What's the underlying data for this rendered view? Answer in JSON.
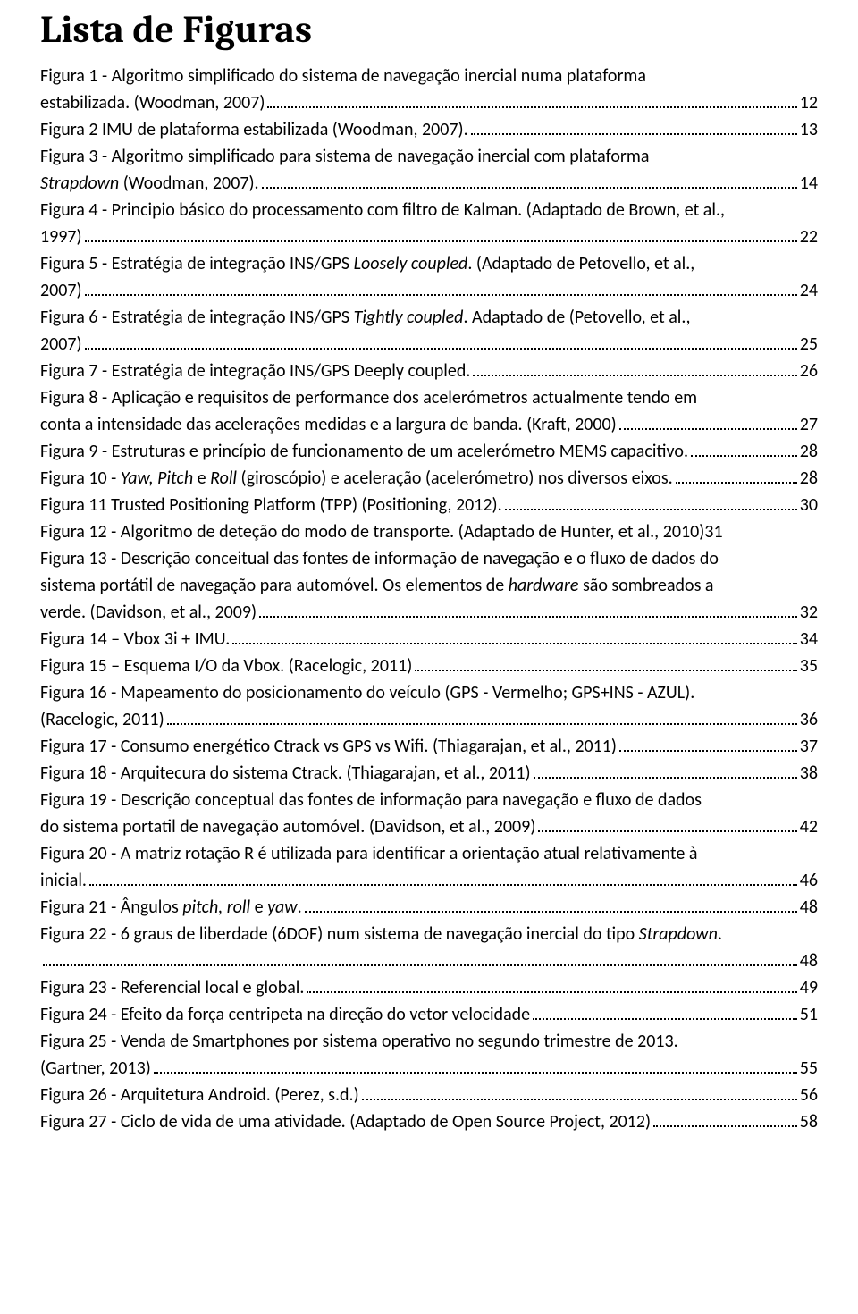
{
  "title": "Lista de Figuras",
  "entries": [
    {
      "pre": "Figura 1 - Algoritmo simplificado do sistema de navegação inercial numa plataforma",
      "last": "estabilizada. (Woodman, 2007)",
      "page": "12"
    },
    {
      "last": "Figura 2 IMU de plataforma estabilizada (Woodman, 2007).",
      "page": "13"
    },
    {
      "pre": "Figura 3 - Algoritmo simplificado para sistema de navegação inercial com plataforma",
      "last_parts": [
        {
          "t": "Strapdown",
          "i": true
        },
        {
          "t": " (Woodman, 2007)."
        }
      ],
      "page": "14"
    },
    {
      "pre": "Figura 4 - Principio básico do processamento com filtro de Kalman. (Adaptado de Brown, et al.,",
      "last": "1997)",
      "page": "22"
    },
    {
      "pre_parts": [
        {
          "t": "Figura 5 - Estratégia de integração INS/GPS "
        },
        {
          "t": "Loosely coupled",
          "i": true
        },
        {
          "t": ". (Adaptado de Petovello, et al.,"
        }
      ],
      "last": "2007)",
      "page": "24"
    },
    {
      "pre_parts": [
        {
          "t": "Figura 6 - Estratégia de integração INS/GPS "
        },
        {
          "t": "Tightly coupled",
          "i": true
        },
        {
          "t": ". Adaptado de (Petovello, et al.,"
        }
      ],
      "last": "2007)",
      "page": "25"
    },
    {
      "last": "Figura 7 - Estratégia de integração INS/GPS Deeply coupled. ",
      "page": "26"
    },
    {
      "pre": "Figura 8 - Aplicação e requisitos de performance dos acelerómetros actualmente tendo em",
      "last": "conta a intensidade das acelerações medidas e a largura de banda. (Kraft, 2000)",
      "page": "27"
    },
    {
      "last": "Figura 9 - Estruturas e princípio de funcionamento de um acelerómetro MEMS capacitivo.",
      "page": "28"
    },
    {
      "last_parts": [
        {
          "t": "Figura 10 - "
        },
        {
          "t": "Yaw, Pitch",
          "i": true
        },
        {
          "t": " e "
        },
        {
          "t": "Roll",
          "i": true
        },
        {
          "t": " (giroscópio) e aceleração (acelerómetro) nos diversos eixos. "
        }
      ],
      "page": "28"
    },
    {
      "last": "Figura 11 Trusted Positioning Platform (TPP) (Positioning, 2012). ",
      "page": "30"
    },
    {
      "last": "Figura 12 - Algoritmo de deteção do modo de transporte. (Adaptado de Hunter, et al., 2010)31",
      "nopage": true
    },
    {
      "pre": "Figura 13 - Descrição conceitual das fontes de informação de navegação e o fluxo de dados do",
      "pre2_parts": [
        {
          "t": "sistema portátil de navegação para automóvel. Os elementos de "
        },
        {
          "t": "hardware",
          "i": true
        },
        {
          "t": " são sombreados a"
        }
      ],
      "last": "verde. (Davidson, et al., 2009)",
      "page": "32"
    },
    {
      "last": "Figura 14 – Vbox 3i + IMU. ",
      "page": "34"
    },
    {
      "last": "Figura 15 – Esquema I/O da Vbox. (Racelogic, 2011) ",
      "page": "35"
    },
    {
      "pre": "Figura 16 - Mapeamento do posicionamento do veículo (GPS - Vermelho; GPS+INS - AZUL).",
      "last": "(Racelogic, 2011)",
      "page": "36"
    },
    {
      "last": "Figura 17 - Consumo energético Ctrack vs GPS vs Wifi. (Thiagarajan, et al., 2011) ",
      "page": "37"
    },
    {
      "last": "Figura 18 - Arquitecura do sistema Ctrack. (Thiagarajan, et al., 2011)",
      "page": "38"
    },
    {
      "pre": "Figura 19 - Descrição conceptual das fontes de informação para navegação e fluxo de dados",
      "last": "do sistema portatil de navegação automóvel. (Davidson, et al., 2009)",
      "page": "42"
    },
    {
      "pre": "Figura 20 - A matriz rotação R é utilizada para identificar a orientação atual relativamente à",
      "last": "inicial. ",
      "page": "46"
    },
    {
      "last_parts": [
        {
          "t": "Figura 21 - Ângulos "
        },
        {
          "t": "pitch, roll",
          "i": true
        },
        {
          "t": " e "
        },
        {
          "t": "yaw",
          "i": true
        },
        {
          "t": ". "
        }
      ],
      "page": "48"
    },
    {
      "pre_parts": [
        {
          "t": "Figura 22 - 6 graus de liberdade (6DOF) num sistema de navegação inercial do tipo "
        },
        {
          "t": "Strapdown",
          "i": true
        },
        {
          "t": "."
        }
      ],
      "last": "",
      "page": "48"
    },
    {
      "last": "Figura 23 - Referencial local e global. ",
      "page": "49"
    },
    {
      "last": "Figura 24 - Efeito da força centripeta na direção do vetor velocidade",
      "page": "51"
    },
    {
      "pre": "Figura 25 - Venda de Smartphones por sistema operativo no segundo trimestre de 2013.",
      "last": "(Gartner, 2013)",
      "page": "55"
    },
    {
      "last": "Figura 26 - Arquitetura Android. (Perez, s.d.) ",
      "page": "56"
    },
    {
      "last": "Figura 27 - Ciclo de vida de uma atividade. (Adaptado de Open Source Project, 2012) ",
      "page": "58"
    }
  ]
}
